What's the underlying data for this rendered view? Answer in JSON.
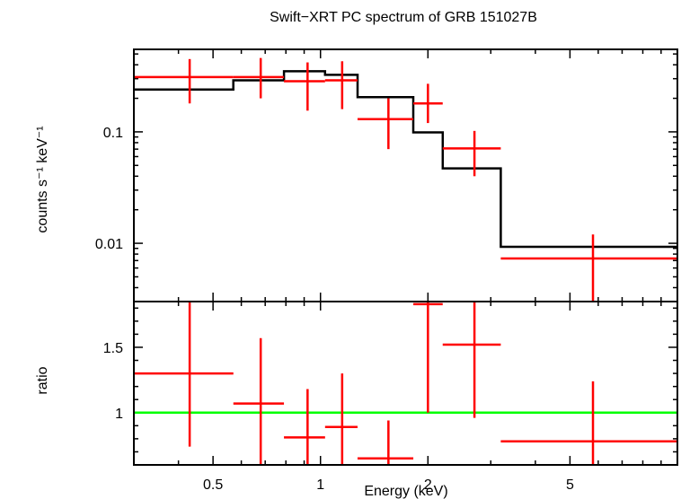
{
  "chart_data": {
    "type": "line",
    "title": "Swift−XRT PC spectrum of GRB 151027B",
    "xlabel": "Energy (keV)",
    "xscale": "log",
    "xlim": [
      0.3,
      10
    ],
    "x_ticks": [
      {
        "value": 0.5,
        "label": "0.5"
      },
      {
        "value": 1,
        "label": "1"
      },
      {
        "value": 2,
        "label": "2"
      },
      {
        "value": 5,
        "label": "5"
      }
    ],
    "colors": {
      "data": "#ff0000",
      "model": "#000000",
      "unity": "#00ff00"
    },
    "top_panel": {
      "ylabel": "counts s⁻¹ keV⁻¹",
      "yscale": "log",
      "ylim": [
        0.003,
        0.55
      ],
      "y_ticks": [
        {
          "value": 0.1,
          "label": "0.1"
        },
        {
          "value": 0.01,
          "label": "0.01"
        }
      ],
      "data": [
        {
          "x": 0.43,
          "xlo": 0.3,
          "xhi": 0.57,
          "y": 0.31,
          "ylo": 0.18,
          "yhi": 0.45
        },
        {
          "x": 0.68,
          "xlo": 0.57,
          "xhi": 0.79,
          "y": 0.31,
          "ylo": 0.2,
          "yhi": 0.46
        },
        {
          "x": 0.92,
          "xlo": 0.79,
          "xhi": 1.03,
          "y": 0.285,
          "ylo": 0.155,
          "yhi": 0.42
        },
        {
          "x": 1.15,
          "xlo": 1.03,
          "xhi": 1.27,
          "y": 0.29,
          "ylo": 0.16,
          "yhi": 0.43
        },
        {
          "x": 1.55,
          "xlo": 1.27,
          "xhi": 1.82,
          "y": 0.13,
          "ylo": 0.07,
          "yhi": 0.2
        },
        {
          "x": 2.0,
          "xlo": 1.82,
          "xhi": 2.2,
          "y": 0.18,
          "ylo": 0.12,
          "yhi": 0.27
        },
        {
          "x": 2.7,
          "xlo": 2.2,
          "xhi": 3.2,
          "y": 0.071,
          "ylo": 0.04,
          "yhi": 0.102
        },
        {
          "x": 5.8,
          "xlo": 3.2,
          "xhi": 10.0,
          "y": 0.0073,
          "ylo": 0.003,
          "yhi": 0.012
        }
      ],
      "model": [
        {
          "xlo": 0.3,
          "xhi": 0.57,
          "y": 0.24
        },
        {
          "xlo": 0.57,
          "xhi": 0.79,
          "y": 0.29
        },
        {
          "xlo": 0.79,
          "xhi": 1.03,
          "y": 0.35
        },
        {
          "xlo": 1.03,
          "xhi": 1.27,
          "y": 0.325
        },
        {
          "xlo": 1.27,
          "xhi": 1.82,
          "y": 0.205
        },
        {
          "xlo": 1.82,
          "xhi": 2.2,
          "y": 0.099
        },
        {
          "xlo": 2.2,
          "xhi": 3.2,
          "y": 0.047
        },
        {
          "xlo": 3.2,
          "xhi": 10.0,
          "y": 0.0093
        }
      ]
    },
    "bottom_panel": {
      "ylabel": "ratio",
      "yscale": "linear",
      "ylim": [
        0.6,
        1.85
      ],
      "y_ticks": [
        {
          "value": 1,
          "label": "1"
        },
        {
          "value": 1.5,
          "label": "1.5"
        }
      ],
      "unity_line": 1,
      "data": [
        {
          "x": 0.43,
          "xlo": 0.3,
          "xhi": 0.57,
          "y": 1.3,
          "ylo": 0.74,
          "yhi": 1.85
        },
        {
          "x": 0.68,
          "xlo": 0.57,
          "xhi": 0.79,
          "y": 1.07,
          "ylo": 0.6,
          "yhi": 1.57
        },
        {
          "x": 0.92,
          "xlo": 0.79,
          "xhi": 1.03,
          "y": 0.81,
          "ylo": 0.6,
          "yhi": 1.18
        },
        {
          "x": 1.15,
          "xlo": 1.03,
          "xhi": 1.27,
          "y": 0.89,
          "ylo": 0.6,
          "yhi": 1.3
        },
        {
          "x": 1.55,
          "xlo": 1.27,
          "xhi": 1.82,
          "y": 0.65,
          "ylo": 0.6,
          "yhi": 0.94
        },
        {
          "x": 2.0,
          "xlo": 1.82,
          "xhi": 2.2,
          "y": 1.83,
          "ylo": 1.0,
          "yhi": 1.85
        },
        {
          "x": 2.7,
          "xlo": 2.2,
          "xhi": 3.2,
          "y": 1.52,
          "ylo": 0.96,
          "yhi": 1.85
        },
        {
          "x": 5.8,
          "xlo": 3.2,
          "xhi": 10.0,
          "y": 0.78,
          "ylo": 0.6,
          "yhi": 1.24
        }
      ]
    }
  }
}
